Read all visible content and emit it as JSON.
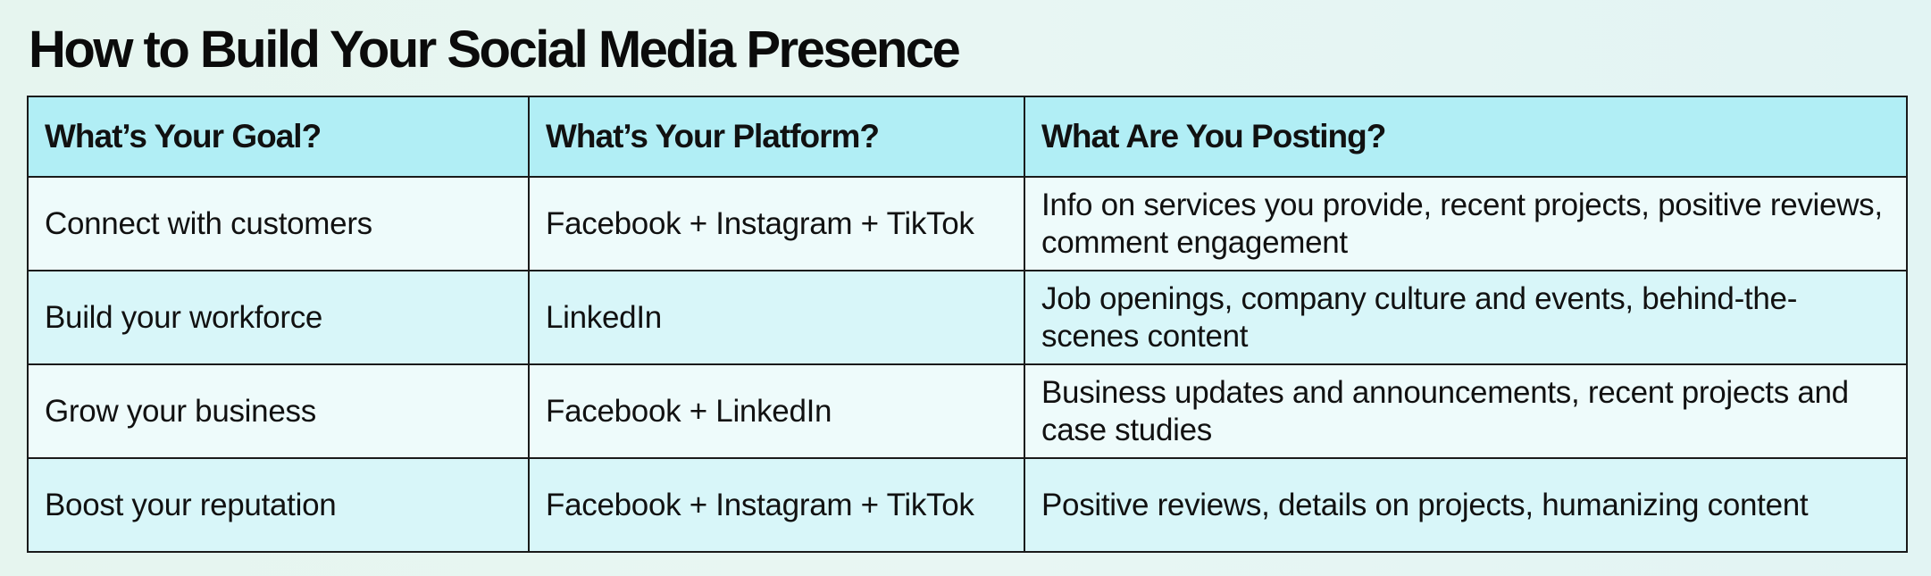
{
  "title": "How to Build Your Social Media Presence",
  "table": {
    "headers": [
      "What’s Your Goal?",
      "What’s Your Platform?",
      "What Are You Posting?"
    ],
    "rows": [
      {
        "goal": "Connect with customers",
        "platform": "Facebook + Instagram + TikTok",
        "posting": "Info on services you provide, recent projects, positive reviews, comment engagement"
      },
      {
        "goal": "Build your workforce",
        "platform": "LinkedIn",
        "posting": "Job openings, company culture and events, behind-the-scenes content"
      },
      {
        "goal": "Grow your business",
        "platform": "Facebook + LinkedIn",
        "posting": "Business updates and announcements, recent projects and case studies"
      },
      {
        "goal": "Boost your reputation",
        "platform": "Facebook + Instagram + TikTok",
        "posting": "Positive reviews, details on projects, humanizing content"
      }
    ]
  },
  "colors": {
    "header_background": "#b1eef5",
    "row_light": "#eefbfb",
    "row_tint": "#d8f6f9",
    "border": "#1a1a1a",
    "page_background": "#e6f5ef"
  }
}
